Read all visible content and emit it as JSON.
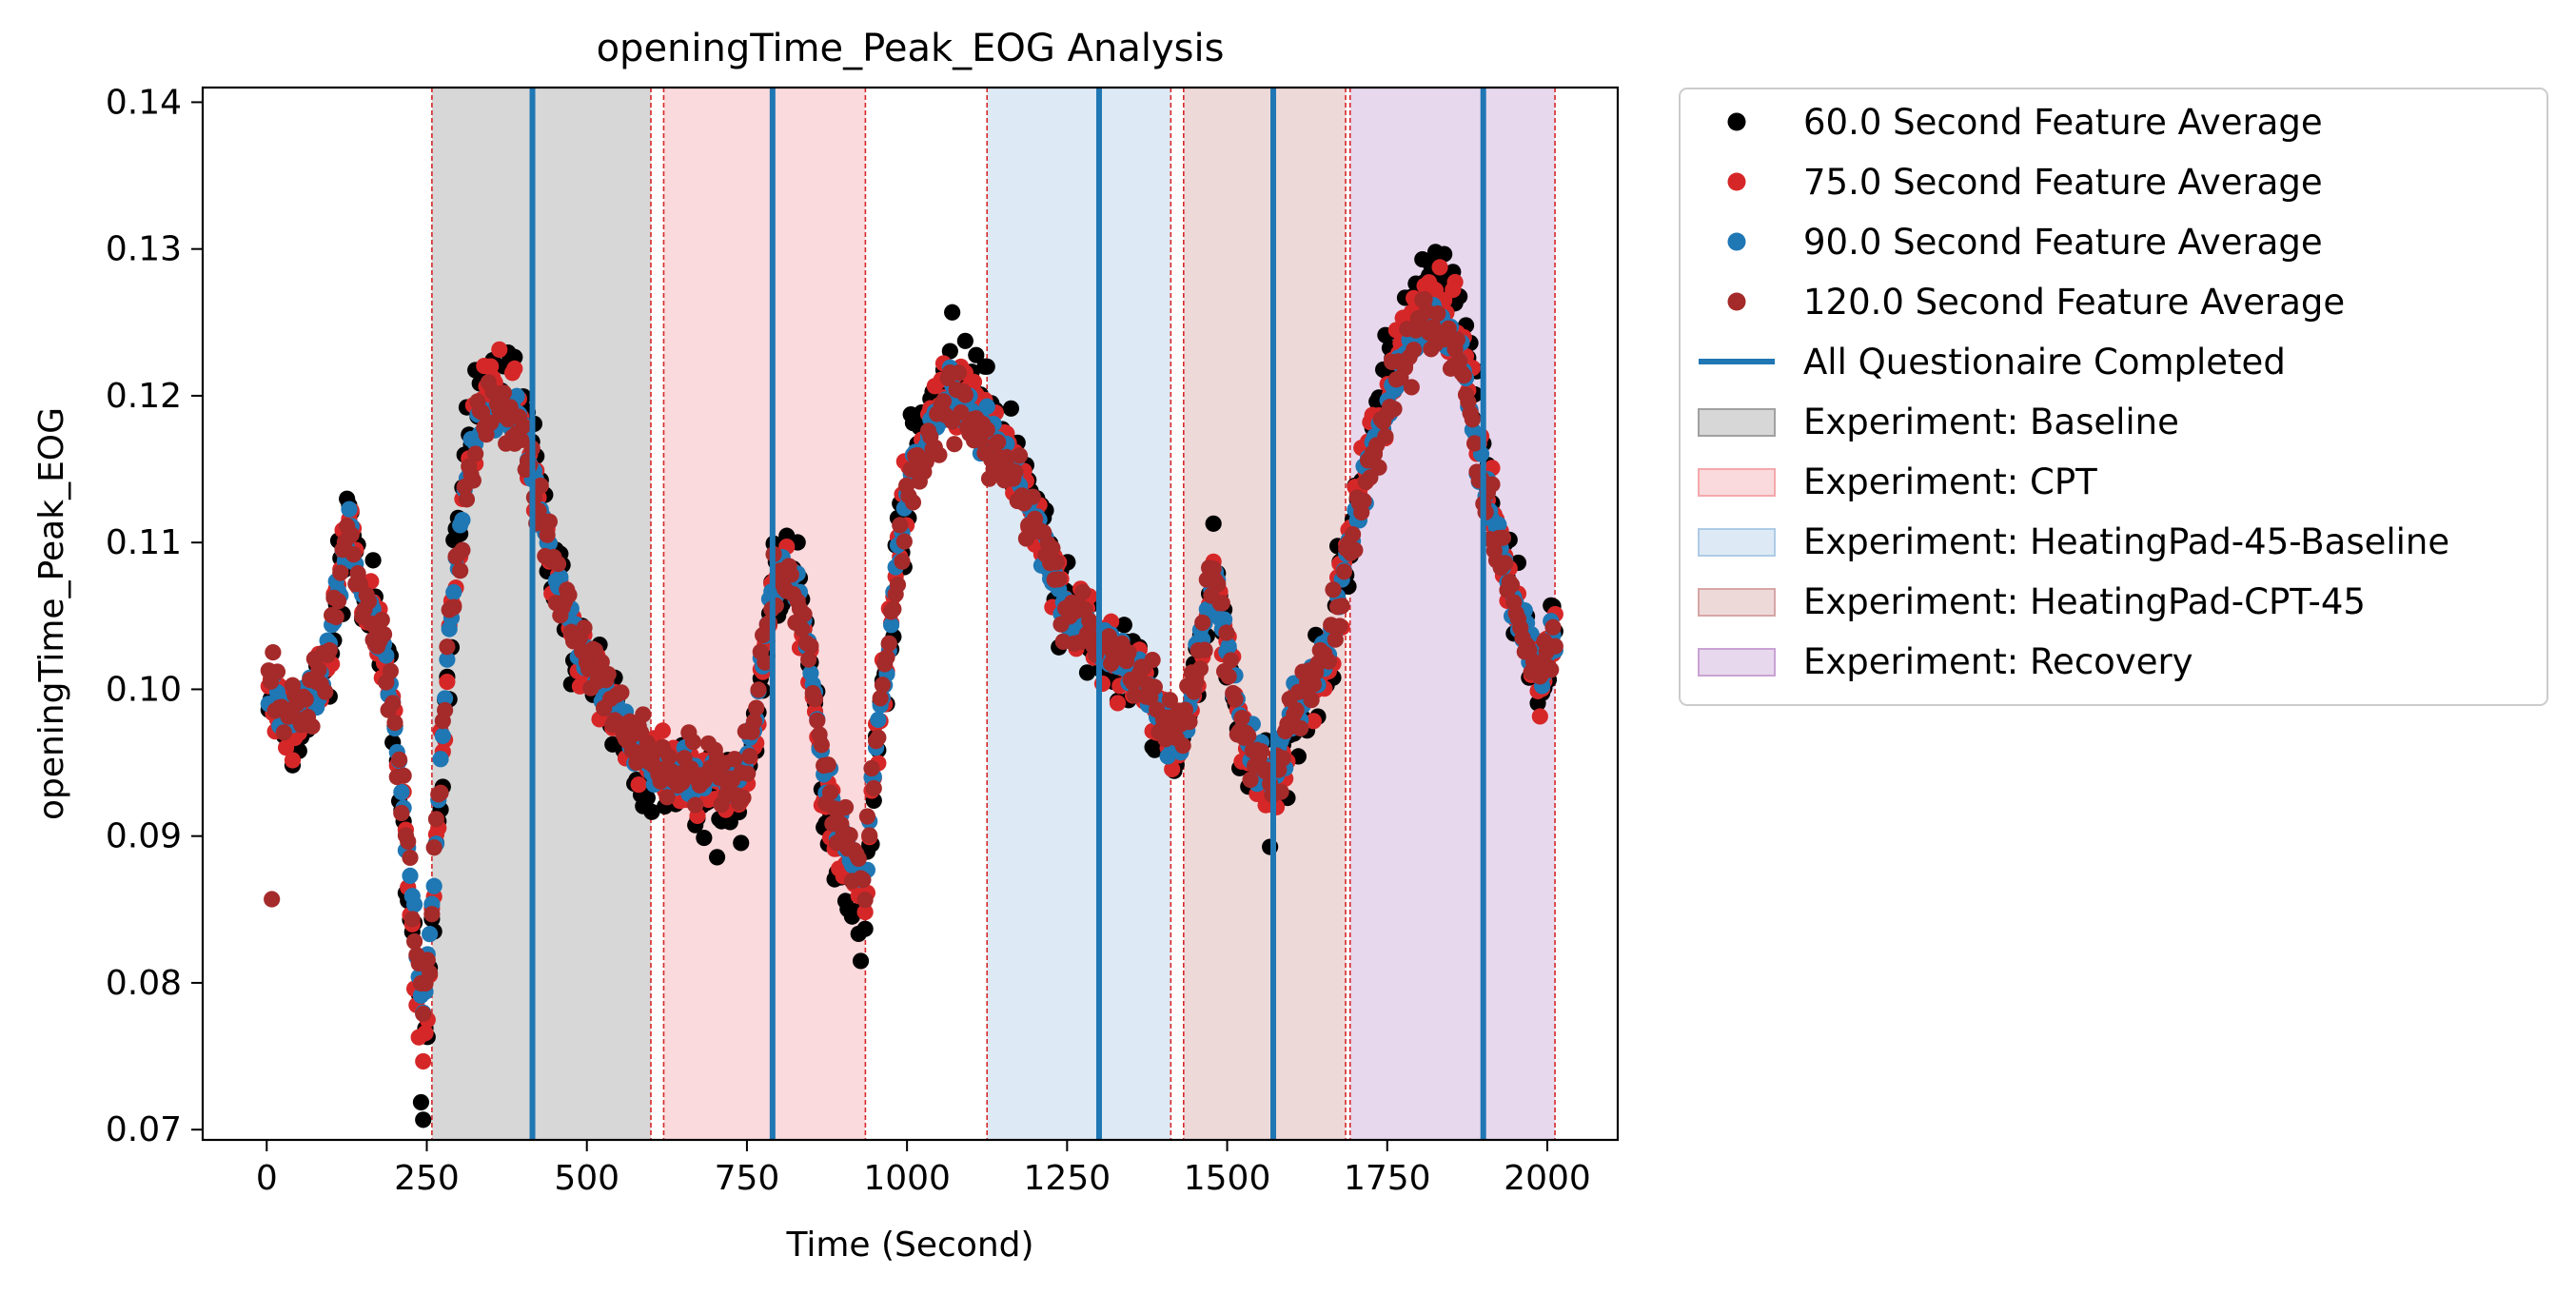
{
  "chart_data": {
    "type": "scatter",
    "title": "openingTime_Peak_EOG Analysis",
    "xlabel": "Time (Second)",
    "ylabel": "openingTime_Peak_EOG",
    "xlim": [
      -100,
      2110
    ],
    "ylim": [
      0.0693,
      0.141
    ],
    "x_ticks": [
      0,
      250,
      500,
      750,
      1000,
      1250,
      1500,
      1750,
      2000
    ],
    "y_ticks": [
      0.07,
      0.08,
      0.09,
      0.1,
      0.11,
      0.12,
      0.13,
      0.14
    ],
    "x_tick_labels": [
      "0",
      "250",
      "500",
      "750",
      "1000",
      "1250",
      "1500",
      "1750",
      "2000"
    ],
    "y_tick_labels": [
      "0.07",
      "0.08",
      "0.09",
      "0.10",
      "0.11",
      "0.12",
      "0.13",
      "0.14"
    ],
    "grid": false,
    "legend_position": "outside-right",
    "experiment_phases": [
      {
        "name": "Experiment: Baseline",
        "color": "#a0a0a0",
        "intervals": [
          [
            258,
            600
          ]
        ]
      },
      {
        "name": "Experiment: CPT",
        "color": "#f4a8ac",
        "intervals": [
          [
            620,
            935
          ]
        ]
      },
      {
        "name": "Experiment: HeatingPad-45-Baseline",
        "color": "#aecbe5",
        "intervals": [
          [
            1125,
            1412
          ]
        ]
      },
      {
        "name": "Experiment: HeatingPad-CPT-45",
        "color": "#d7a5a5",
        "intervals": [
          [
            1432,
            1685
          ]
        ]
      },
      {
        "name": "Experiment: Recovery",
        "color": "#c9a2d3",
        "intervals": [
          [
            1692,
            2012
          ]
        ]
      }
    ],
    "phase_boundaries": [
      258,
      600,
      620,
      935,
      1125,
      1412,
      1432,
      1685,
      1692,
      2012
    ],
    "questionnaire_completed": {
      "name": "All Questionaire Completed",
      "color": "#1f77b4",
      "x": [
        415,
        790,
        1300,
        1572,
        1900
      ]
    },
    "anchors": {
      "x": [
        5,
        15,
        30,
        50,
        70,
        85,
        100,
        115,
        130,
        140,
        150,
        165,
        180,
        195,
        205,
        215,
        225,
        237,
        245,
        252,
        258,
        265,
        275,
        290,
        310,
        330,
        350,
        380,
        400,
        430,
        460,
        490,
        520,
        550,
        575,
        600,
        630,
        660,
        700,
        740,
        765,
        790,
        810,
        830,
        850,
        870,
        890,
        910,
        935,
        950,
        970,
        990,
        1010,
        1040,
        1070,
        1100,
        1130,
        1160,
        1200,
        1240,
        1280,
        1310,
        1340,
        1380,
        1420,
        1440,
        1460,
        1480,
        1500,
        1520,
        1545,
        1572,
        1600,
        1630,
        1660,
        1690,
        1710,
        1740,
        1770,
        1800,
        1830,
        1860,
        1880,
        1900,
        1920,
        1945,
        1970,
        1990,
        2010
      ],
      "base": [
        0.1005,
        0.1,
        0.098,
        0.099,
        0.1,
        0.101,
        0.103,
        0.107,
        0.112,
        0.108,
        0.106,
        0.105,
        0.103,
        0.1,
        0.096,
        0.092,
        0.088,
        0.082,
        0.08,
        0.083,
        0.087,
        0.091,
        0.098,
        0.106,
        0.113,
        0.117,
        0.1185,
        0.118,
        0.117,
        0.111,
        0.106,
        0.103,
        0.101,
        0.099,
        0.097,
        0.096,
        0.095,
        0.095,
        0.0945,
        0.094,
        0.099,
        0.107,
        0.108,
        0.106,
        0.102,
        0.095,
        0.092,
        0.09,
        0.088,
        0.096,
        0.103,
        0.11,
        0.114,
        0.117,
        0.119,
        0.118,
        0.116,
        0.115,
        0.111,
        0.106,
        0.104,
        0.103,
        0.102,
        0.1,
        0.097,
        0.099,
        0.104,
        0.108,
        0.103,
        0.098,
        0.096,
        0.094,
        0.099,
        0.101,
        0.103,
        0.109,
        0.113,
        0.117,
        0.121,
        0.123,
        0.124,
        0.122,
        0.118,
        0.113,
        0.11,
        0.106,
        0.103,
        0.101,
        0.104
      ]
    },
    "series": [
      {
        "name": "60.0 Second Feature Average",
        "color": "#000000",
        "amp": 0.0028,
        "peakboost": 0.0032
      },
      {
        "name": "75.0 Second Feature Average",
        "color": "#d62728",
        "amp": 0.0022,
        "peakboost": 0.0022
      },
      {
        "name": "90.0 Second Feature Average",
        "color": "#1f77b4",
        "amp": 0.0014,
        "peakboost": 0.001
      },
      {
        "name": "120.0 Second Feature Average",
        "color": "#a52a2a",
        "amp": 0.002,
        "peakboost": 0.0008
      }
    ],
    "outliers": [
      {
        "x": 8,
        "y": 0.0857,
        "color": "#a52a2a"
      }
    ]
  }
}
